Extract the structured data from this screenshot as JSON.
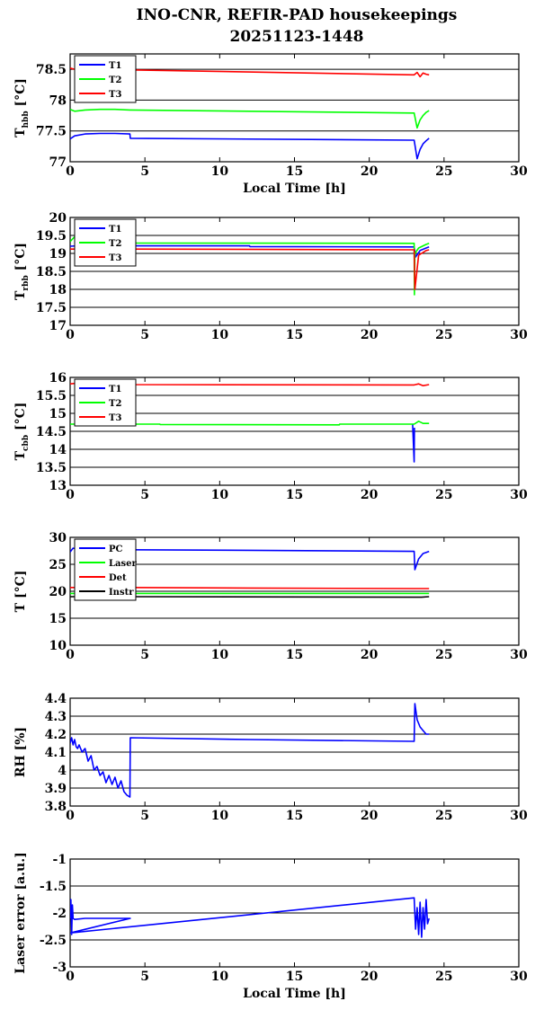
{
  "figure": {
    "title_line1": "INO-CNR, REFIR-PAD housekeepings",
    "title_line2": "20251123-1448"
  },
  "chart_data": [
    {
      "type": "line",
      "id": "hbb",
      "ylabel": "T",
      "ylabel_sub": "hbb",
      "ylabel_unit": " [°C]",
      "xlabel": "Local Time [h]",
      "xlim": [
        0,
        30
      ],
      "ylim": [
        77,
        78.75
      ],
      "xticks": [
        0,
        5,
        10,
        15,
        20,
        25,
        30
      ],
      "yticks": [
        77,
        77.5,
        78,
        78.5
      ],
      "ytick_labels": [
        "77",
        "77.5",
        "78",
        "78.5"
      ],
      "grid": "horizontal",
      "legend_position": "top-left",
      "series": [
        {
          "name": "T1",
          "color": "#0000ff",
          "x": [
            0,
            0.3,
            1,
            2,
            3,
            4,
            4.02,
            23,
            23.2,
            23.4,
            23.6,
            23.8,
            24
          ],
          "y": [
            77.37,
            77.42,
            77.45,
            77.46,
            77.46,
            77.45,
            77.38,
            77.35,
            77.05,
            77.2,
            77.29,
            77.34,
            77.38
          ]
        },
        {
          "name": "T2",
          "color": "#00ff00",
          "x": [
            0,
            0.3,
            1,
            2,
            3,
            4,
            4.02,
            23,
            23.2,
            23.4,
            23.6,
            23.8,
            24
          ],
          "y": [
            77.85,
            77.82,
            77.84,
            77.85,
            77.85,
            77.84,
            77.84,
            77.79,
            77.55,
            77.68,
            77.75,
            77.8,
            77.83
          ]
        },
        {
          "name": "T3",
          "color": "#ff0000",
          "x": [
            0,
            0.3,
            1,
            2,
            3,
            4,
            4.02,
            23,
            23.2,
            23.4,
            23.6,
            23.8,
            24
          ],
          "y": [
            78.52,
            78.5,
            78.51,
            78.51,
            78.51,
            78.5,
            78.49,
            78.41,
            78.45,
            78.38,
            78.44,
            78.42,
            78.41
          ]
        }
      ]
    },
    {
      "type": "line",
      "id": "rbb",
      "ylabel": "T",
      "ylabel_sub": "rbb",
      "ylabel_unit": " [°C]",
      "xlabel": "",
      "xlim": [
        0,
        30
      ],
      "ylim": [
        17,
        20
      ],
      "xticks": [
        0,
        5,
        10,
        15,
        20,
        25,
        30
      ],
      "yticks": [
        17,
        17.5,
        18,
        18.5,
        19,
        19.5,
        20
      ],
      "ytick_labels": [
        "17",
        "17.5",
        "18",
        "18.5",
        "19",
        "19.5",
        "20"
      ],
      "grid": "horizontal",
      "legend_position": "top-left",
      "series": [
        {
          "name": "T1",
          "color": "#0000ff",
          "x": [
            0,
            1,
            2,
            4,
            4.02,
            12,
            12.02,
            23,
            23.1,
            23.4,
            23.8,
            24
          ],
          "y": [
            19.2,
            19.22,
            19.22,
            19.21,
            19.21,
            19.21,
            19.19,
            19.18,
            18.9,
            19.08,
            19.15,
            19.18
          ]
        },
        {
          "name": "T2",
          "color": "#00ff00",
          "x": [
            0,
            0.5,
            1.5,
            4,
            4.02,
            23,
            23.02,
            23.05,
            23.3,
            23.8,
            24
          ],
          "y": [
            19.33,
            19.55,
            19.85,
            19.3,
            19.29,
            19.28,
            17.85,
            19.0,
            19.15,
            19.25,
            19.28
          ]
        },
        {
          "name": "T3",
          "color": "#ff0000",
          "x": [
            0,
            1,
            4,
            4.02,
            23,
            23.05,
            23.3,
            23.8,
            24
          ],
          "y": [
            19.12,
            19.12,
            19.12,
            19.12,
            19.1,
            18.0,
            18.95,
            19.08,
            19.1
          ]
        }
      ]
    },
    {
      "type": "line",
      "id": "cbb",
      "ylabel": "T",
      "ylabel_sub": "cbb",
      "ylabel_unit": " [°C]",
      "xlabel": "",
      "xlim": [
        0,
        30
      ],
      "ylim": [
        13,
        16
      ],
      "xticks": [
        0,
        5,
        10,
        15,
        20,
        25,
        30
      ],
      "yticks": [
        13,
        13.5,
        14,
        14.5,
        15,
        15.5,
        16
      ],
      "ytick_labels": [
        "13",
        "13.5",
        "14",
        "14.5",
        "15",
        "15.5",
        "16"
      ],
      "grid": "horizontal",
      "legend_position": "top-left",
      "series": [
        {
          "name": "T1",
          "color": "#0000ff",
          "x": [
            22.9,
            23,
            23.02
          ],
          "y": [
            14.7,
            13.65,
            14.6
          ]
        },
        {
          "name": "T2",
          "color": "#00ff00",
          "x": [
            0,
            2,
            4,
            6,
            6.02,
            18,
            18.02,
            23,
            23.3,
            23.6,
            24
          ],
          "y": [
            14.7,
            14.7,
            14.7,
            14.7,
            14.69,
            14.68,
            14.7,
            14.7,
            14.78,
            14.72,
            14.72
          ]
        },
        {
          "name": "T3",
          "color": "#ff0000",
          "x": [
            0,
            1,
            2,
            4,
            4.02,
            23,
            23.3,
            23.6,
            24
          ],
          "y": [
            15.82,
            15.86,
            15.86,
            15.84,
            15.8,
            15.79,
            15.82,
            15.77,
            15.8
          ]
        }
      ]
    },
    {
      "type": "line",
      "id": "temps",
      "ylabel": "T [°C]",
      "ylabel_sub": "",
      "ylabel_unit": "",
      "xlabel": "",
      "xlim": [
        0,
        30
      ],
      "ylim": [
        10,
        30
      ],
      "xticks": [
        0,
        5,
        10,
        15,
        20,
        25,
        30
      ],
      "yticks": [
        10,
        15,
        20,
        25,
        30
      ],
      "ytick_labels": [
        "10",
        "15",
        "20",
        "25",
        "30"
      ],
      "grid": "horizontal",
      "legend_position": "top-left",
      "series": [
        {
          "name": "PC",
          "color": "#0000ff",
          "x": [
            0,
            0.2,
            0.5,
            4,
            12,
            23,
            23.05,
            23.3,
            23.6,
            24
          ],
          "y": [
            27.3,
            28.0,
            27.8,
            27.7,
            27.6,
            27.4,
            24.0,
            26.0,
            27.0,
            27.4
          ]
        },
        {
          "name": "Laser",
          "color": "#00ff00",
          "x": [
            0,
            4,
            23,
            24
          ],
          "y": [
            19.6,
            19.6,
            19.6,
            19.6
          ]
        },
        {
          "name": "Det",
          "color": "#ff0000",
          "x": [
            0,
            4,
            12,
            23,
            23.5,
            24
          ],
          "y": [
            20.7,
            20.7,
            20.6,
            20.5,
            20.5,
            20.5
          ]
        },
        {
          "name": "Instr",
          "color": "#000000",
          "x": [
            0,
            4,
            23,
            23.5,
            24
          ],
          "y": [
            19.0,
            19.0,
            18.9,
            18.9,
            19.0
          ]
        }
      ]
    },
    {
      "type": "line",
      "id": "rh",
      "ylabel": "RH [%]",
      "ylabel_sub": "",
      "ylabel_unit": "",
      "xlabel": "",
      "xlim": [
        0,
        30
      ],
      "ylim": [
        3.8,
        4.4
      ],
      "xticks": [
        0,
        5,
        10,
        15,
        20,
        25,
        30
      ],
      "yticks": [
        3.8,
        3.9,
        4.0,
        4.1,
        4.2,
        4.3,
        4.4
      ],
      "ytick_labels": [
        "3.8",
        "3.9",
        "4",
        "4.1",
        "4.2",
        "4.3",
        "4.4"
      ],
      "grid": "horizontal",
      "legend_position": "none",
      "series": [
        {
          "name": "",
          "color": "#0000ff",
          "x": [
            0,
            0.1,
            0.2,
            0.3,
            0.4,
            0.5,
            0.6,
            0.8,
            1.0,
            1.2,
            1.4,
            1.6,
            1.8,
            2.0,
            2.2,
            2.4,
            2.6,
            2.8,
            3.0,
            3.2,
            3.4,
            3.6,
            3.8,
            4.0,
            4.02,
            12,
            23,
            23.05,
            23.2,
            23.4,
            23.6,
            23.8,
            24
          ],
          "y": [
            4.15,
            4.18,
            4.14,
            4.17,
            4.13,
            4.12,
            4.14,
            4.1,
            4.12,
            4.05,
            4.08,
            4.0,
            4.02,
            3.97,
            3.99,
            3.93,
            3.97,
            3.92,
            3.96,
            3.9,
            3.94,
            3.88,
            3.86,
            3.85,
            4.18,
            4.17,
            4.16,
            4.37,
            4.28,
            4.24,
            4.22,
            4.2,
            4.2
          ]
        }
      ]
    },
    {
      "type": "line",
      "id": "laser",
      "ylabel": "Laser error [a.u.]",
      "ylabel_sub": "",
      "ylabel_unit": "",
      "xlabel": "Local Time [h]",
      "xlim": [
        0,
        30
      ],
      "ylim": [
        -3,
        -1
      ],
      "xticks": [
        0,
        5,
        10,
        15,
        20,
        25,
        30
      ],
      "yticks": [
        -3,
        -2.5,
        -2,
        -1.5,
        -1
      ],
      "ytick_labels": [
        "-3",
        "-2.5",
        "-2",
        "-1.5",
        "-1"
      ],
      "grid": "horizontal",
      "legend_position": "none",
      "series": [
        {
          "name": "",
          "color": "#0000ff",
          "x": [
            0,
            0.05,
            0.1,
            0.15,
            0.2,
            0.3,
            1,
            2,
            3,
            4,
            4.02,
            0.02,
            23.0,
            23.1,
            23.2,
            23.3,
            23.4,
            23.5,
            23.6,
            23.7,
            23.8,
            23.9,
            24
          ],
          "y": [
            -2.1,
            -1.75,
            -2.4,
            -1.85,
            -2.1,
            -2.12,
            -2.1,
            -2.1,
            -2.1,
            -2.1,
            -2.1,
            -2.37,
            -1.72,
            -2.3,
            -1.9,
            -2.4,
            -1.8,
            -2.45,
            -1.9,
            -2.3,
            -1.75,
            -2.2,
            -2.1
          ]
        }
      ]
    }
  ]
}
